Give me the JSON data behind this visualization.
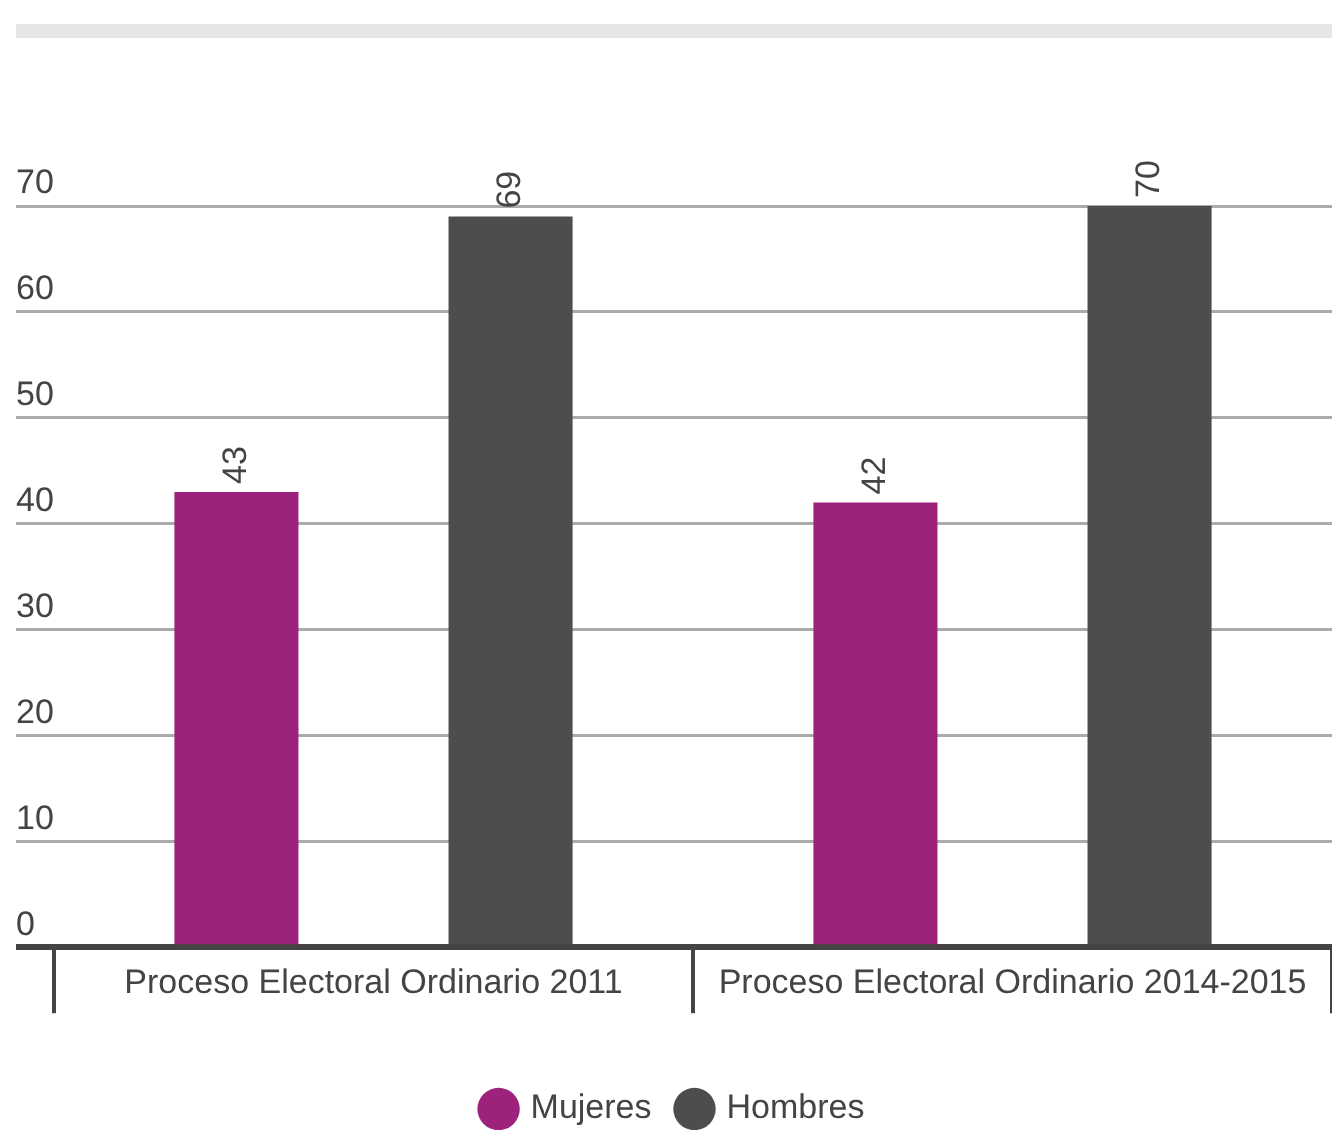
{
  "chart_data": {
    "type": "bar",
    "categories": [
      "Proceso Electoral Ordinario 2011",
      "Proceso Electoral Ordinario 2014-2015"
    ],
    "series": [
      {
        "name": "Mujeres",
        "color": "#9c227c",
        "values": [
          43,
          42
        ]
      },
      {
        "name": "Hombres",
        "color": "#4d4d4d",
        "values": [
          69,
          70
        ]
      }
    ],
    "ylim": [
      0,
      70
    ],
    "yticks": [
      0,
      10,
      20,
      30,
      40,
      50,
      60,
      70
    ],
    "grid": "y",
    "legend": "bottom",
    "data_labels": true
  }
}
